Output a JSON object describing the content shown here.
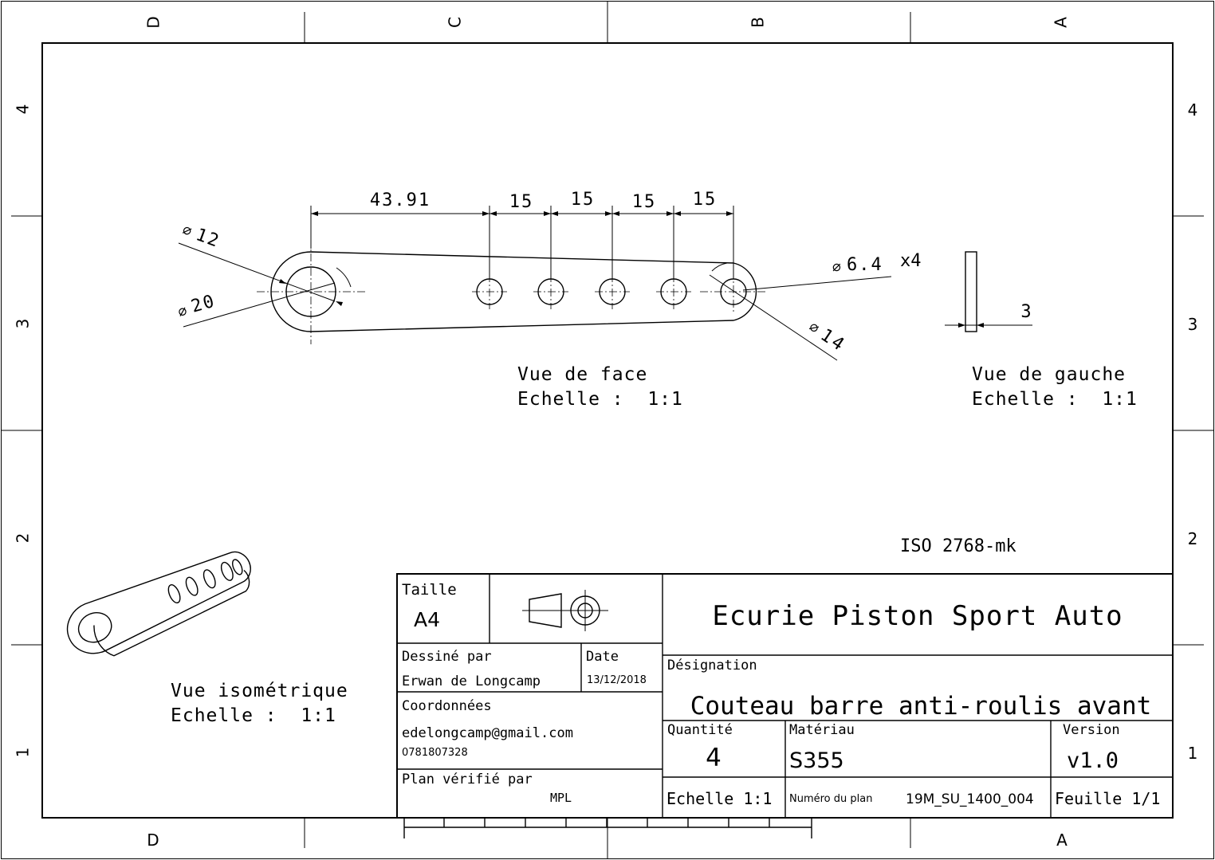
{
  "frame": {
    "columns_top": [
      "D",
      "C",
      "B",
      "A"
    ],
    "columns_bottom": [
      "D",
      "A"
    ],
    "rows": [
      "4",
      "3",
      "2",
      "1"
    ]
  },
  "front_view": {
    "dimensions": [
      "43.91",
      "15",
      "15",
      "15",
      "15"
    ],
    "dia_12": "12",
    "dia_20": "20",
    "dia_holes": "6.4",
    "holes_count": "x4",
    "dia_14": "14",
    "title": "Vue de face",
    "scale": "Echelle :  1:1"
  },
  "left_view": {
    "thickness": "3",
    "title": "Vue de gauche",
    "scale": "Echelle :  1:1"
  },
  "iso_view": {
    "title": "Vue isométrique",
    "scale": "Echelle :  1:1"
  },
  "tolerance": "ISO 2768-mk",
  "title_block": {
    "taille_label": "Taille",
    "taille_value": "A4",
    "company": "Ecurie Piston Sport Auto",
    "dessine_label": "Dessiné par",
    "dessine_value": "Erwan de Longcamp",
    "date_label": "Date",
    "date_value": "13/12/2018",
    "coord_label": "Coordonnées",
    "email": "edelongcamp@gmail.com",
    "phone": "0781807328",
    "verifie_label": "Plan vérifié par",
    "verifie_value": "MPL",
    "designation_label": "Désignation",
    "designation_value": "Couteau barre anti-roulis avant",
    "quantite_label": "Quantité",
    "quantite_value": "4",
    "materiau_label": "Matériau",
    "materiau_value": "S355",
    "version_label": "Version",
    "version_value": "v1.0",
    "echelle": "Echelle 1:1",
    "numero_label": "Numéro du plan",
    "numero_value": "19M_SU_1400_004",
    "feuille": "Feuille 1/1"
  }
}
